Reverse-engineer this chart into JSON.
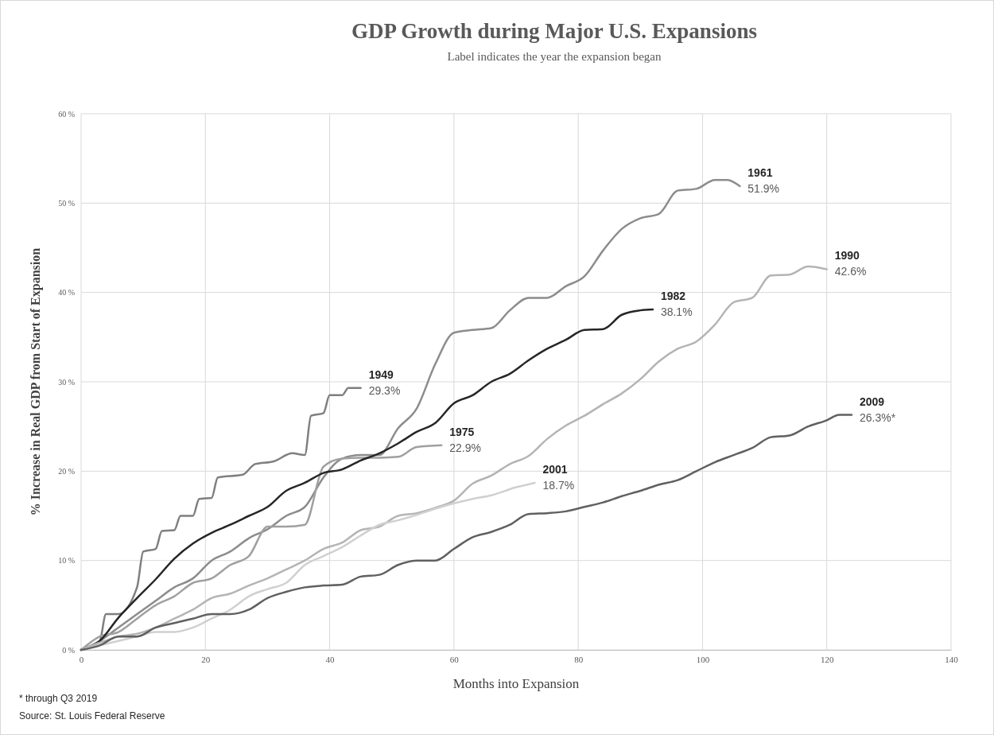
{
  "chart_data": {
    "type": "line",
    "title": "GDP Growth during Major U.S. Expansions",
    "subtitle": "Label indicates the year the expansion began",
    "xlabel": "Months into Expansion",
    "ylabel": "% Increase in Real GDP from Start of Expansion",
    "xlim": [
      0,
      140
    ],
    "xticks": [
      0,
      20,
      40,
      60,
      80,
      100,
      120,
      140
    ],
    "ylim": [
      0,
      60
    ],
    "yticks": [
      {
        "value": 0,
        "label": "0 %"
      },
      {
        "value": 10,
        "label": "10 %"
      },
      {
        "value": 20,
        "label": "20 %"
      },
      {
        "value": 30,
        "label": "30 %"
      },
      {
        "value": 40,
        "label": "40 %"
      },
      {
        "value": 50,
        "label": "50 %"
      },
      {
        "value": 60,
        "label": "60 %"
      }
    ],
    "grid": true,
    "marker": "none",
    "line_style": "solid",
    "series": [
      {
        "name": "1949",
        "color": "#7f7f7f",
        "x": [
          0,
          3,
          4,
          6,
          9,
          10,
          12,
          13,
          15,
          16,
          18,
          19,
          21,
          22,
          26,
          28,
          31,
          34,
          36,
          37,
          39,
          40,
          42,
          43,
          45
        ],
        "values": [
          0,
          1,
          4,
          4,
          7,
          11,
          11.3,
          13.3,
          13.4,
          15,
          15,
          16.9,
          17,
          19.3,
          19.6,
          20.8,
          21.1,
          22,
          21.8,
          26.2,
          26.5,
          28.5,
          28.5,
          29.3,
          29.3
        ]
      },
      {
        "name": "1961",
        "color": "#8c8c8c",
        "x": [
          0,
          3,
          6,
          9,
          12,
          15,
          18,
          21,
          24,
          27,
          30,
          33,
          36,
          39,
          42,
          45,
          48,
          51,
          54,
          57,
          60,
          63,
          66,
          69,
          72,
          75,
          78,
          81,
          84,
          87,
          90,
          93,
          96,
          99,
          102,
          104,
          106
        ],
        "values": [
          0,
          1,
          2.5,
          4,
          5.5,
          7,
          8,
          10,
          11,
          12.5,
          13.5,
          15,
          16,
          19.3,
          21.4,
          21.8,
          21.8,
          24.8,
          27,
          32,
          35.5,
          35.8,
          36,
          38,
          39.4,
          39.4,
          40.7,
          41.8,
          44.7,
          47.1,
          48.3,
          48.8,
          51.4,
          51.6,
          52.6,
          52.6,
          51.9
        ]
      },
      {
        "name": "1975",
        "color": "#a0a0a0",
        "x": [
          0,
          3,
          6,
          9,
          12,
          15,
          18,
          21,
          24,
          27,
          30,
          33,
          36,
          39,
          42,
          45,
          48,
          51,
          54,
          58
        ],
        "values": [
          0,
          1.5,
          2,
          3.5,
          5,
          6,
          7.5,
          8,
          9.5,
          10.5,
          13.8,
          13.8,
          14,
          20.5,
          21.4,
          21.5,
          21.5,
          21.6,
          22.7,
          22.9
        ]
      },
      {
        "name": "1982",
        "color": "#262626",
        "x": [
          0,
          3,
          6,
          9,
          12,
          15,
          18,
          21,
          24,
          27,
          30,
          33,
          36,
          39,
          42,
          45,
          48,
          51,
          54,
          57,
          60,
          63,
          66,
          69,
          72,
          75,
          78,
          81,
          84,
          87,
          90,
          92
        ],
        "values": [
          0,
          1,
          3.6,
          5.8,
          7.9,
          10.2,
          11.9,
          13.1,
          14,
          15,
          16,
          17.8,
          18.7,
          19.8,
          20.2,
          21.2,
          22,
          23.1,
          24.4,
          25.4,
          27.6,
          28.5,
          30,
          30.9,
          32.4,
          33.7,
          34.7,
          35.8,
          35.9,
          37.5,
          38,
          38.1
        ]
      },
      {
        "name": "1990",
        "color": "#b4b4b4",
        "x": [
          0,
          3,
          6,
          9,
          12,
          15,
          18,
          21,
          24,
          27,
          30,
          33,
          36,
          39,
          42,
          45,
          48,
          51,
          54,
          57,
          60,
          63,
          66,
          69,
          72,
          75,
          78,
          81,
          84,
          87,
          90,
          93,
          96,
          99,
          102,
          105,
          108,
          111,
          114,
          117,
          120
        ],
        "values": [
          0,
          0.8,
          1.5,
          1.8,
          2.5,
          3.5,
          4.5,
          5.8,
          6.3,
          7.2,
          8,
          9,
          10,
          11.3,
          12,
          13.4,
          13.8,
          15,
          15.3,
          15.9,
          16.7,
          18.6,
          19.5,
          20.8,
          21.7,
          23.6,
          25.1,
          26.2,
          27.5,
          28.7,
          30.3,
          32.3,
          33.7,
          34.5,
          36.4,
          38.9,
          39.4,
          41.9,
          42,
          42.9,
          42.6
        ]
      },
      {
        "name": "2001",
        "color": "#d0d0d0",
        "x": [
          0,
          3,
          6,
          9,
          12,
          15,
          18,
          21,
          24,
          27,
          30,
          33,
          36,
          39,
          42,
          45,
          48,
          51,
          54,
          57,
          60,
          63,
          66,
          70,
          73
        ],
        "values": [
          0,
          0.5,
          1,
          1.5,
          2,
          2,
          2.5,
          3.5,
          4.5,
          6,
          6.8,
          7.5,
          9.5,
          10.5,
          11.5,
          12.8,
          14,
          14.5,
          15.1,
          15.8,
          16.4,
          16.9,
          17.3,
          18.2,
          18.7
        ]
      },
      {
        "name": "2009",
        "color": "#606060",
        "x": [
          0,
          3,
          6,
          9,
          12,
          15,
          18,
          21,
          24,
          27,
          30,
          33,
          36,
          39,
          42,
          45,
          48,
          51,
          54,
          57,
          60,
          63,
          66,
          69,
          72,
          75,
          78,
          81,
          84,
          87,
          90,
          93,
          96,
          99,
          102,
          105,
          108,
          111,
          114,
          117,
          120,
          122,
          124
        ],
        "values": [
          0,
          0.5,
          1.5,
          1.5,
          2.5,
          3,
          3.5,
          4,
          4,
          4.5,
          5.8,
          6.5,
          7,
          7.2,
          7.3,
          8.2,
          8.4,
          9.5,
          10,
          10,
          11.3,
          12.6,
          13.2,
          14,
          15.2,
          15.3,
          15.5,
          16,
          16.5,
          17.2,
          17.8,
          18.5,
          19,
          20,
          21,
          21.8,
          22.6,
          23.8,
          24,
          25,
          25.7,
          26.3,
          26.3
        ]
      }
    ],
    "annotations": [
      {
        "text": "29.3%",
        "x": 45,
        "y": 29.3
      },
      {
        "text": "51.9%",
        "x": 106,
        "y": 51.9
      },
      {
        "text": "22.9%",
        "x": 58,
        "y": 22.9
      },
      {
        "text": "38.1%",
        "x": 92,
        "y": 38.1
      },
      {
        "text": "42.6%",
        "x": 120,
        "y": 42.6
      },
      {
        "text": "18.7%",
        "x": 73,
        "y": 18.7
      },
      {
        "text": "26.3%*",
        "x": 124,
        "y": 26.3
      },
      "* through Q3 2019",
      "Source: St. Louis Federal Reserve"
    ]
  }
}
